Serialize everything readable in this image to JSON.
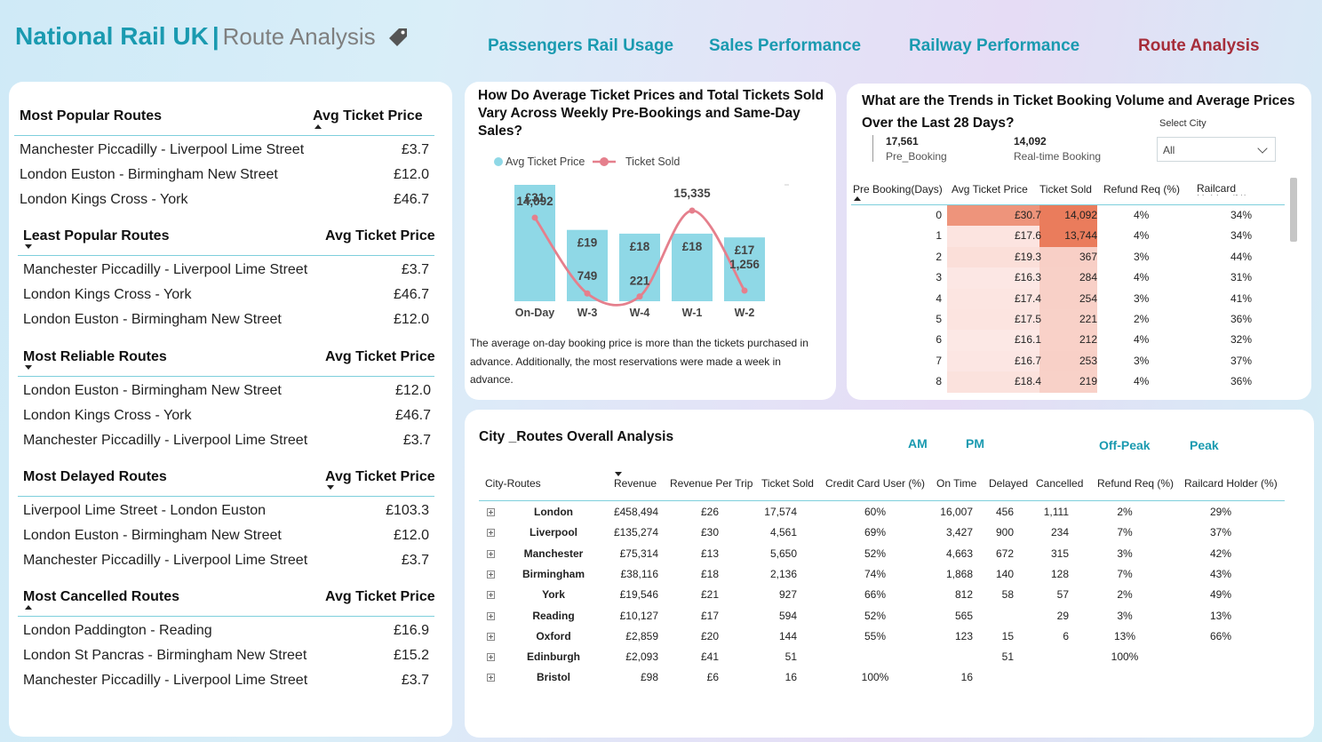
{
  "header": {
    "brand": "National Rail UK",
    "separator": "|",
    "subtitle": "Route Analysis",
    "icon": "tag-icon"
  },
  "nav": [
    {
      "label": "Passengers Rail Usage",
      "active": false
    },
    {
      "label": "Sales Performance",
      "active": false
    },
    {
      "label": "Railway Performance",
      "active": false
    },
    {
      "label": "Route Analysis",
      "active": true
    }
  ],
  "route_sections": [
    {
      "title": "Most Popular Routes",
      "price_header": "Avg Ticket Price",
      "sort": "up",
      "rows": [
        {
          "route": "Manchester Piccadilly - Liverpool Lime Street",
          "price": "£3.7"
        },
        {
          "route": "London Euston - Birmingham New Street",
          "price": "£12.0"
        },
        {
          "route": "London Kings Cross - York",
          "price": "£46.7"
        }
      ]
    },
    {
      "title": "Least Popular Routes",
      "price_header": "Avg Ticket Price",
      "sort": "down",
      "rows": [
        {
          "route": "Manchester Piccadilly - Liverpool Lime Street",
          "price": "£3.7"
        },
        {
          "route": "London Kings Cross - York",
          "price": "£46.7"
        },
        {
          "route": "London Euston - Birmingham New Street",
          "price": "£12.0"
        }
      ]
    },
    {
      "title": "Most Reliable Routes",
      "price_header": "Avg Ticket Price",
      "sort": "down",
      "rows": [
        {
          "route": "London Euston - Birmingham New Street",
          "price": "£12.0"
        },
        {
          "route": "London Kings Cross - York",
          "price": "£46.7"
        },
        {
          "route": "Manchester Piccadilly - Liverpool Lime Street",
          "price": "£3.7"
        }
      ]
    },
    {
      "title": "Most Delayed Routes",
      "price_header": "Avg Ticket Price",
      "sort": "down",
      "rows": [
        {
          "route": "Liverpool Lime Street - London Euston",
          "price": "£103.3"
        },
        {
          "route": "London Euston - Birmingham New Street",
          "price": "£12.0"
        },
        {
          "route": "Manchester Piccadilly - Liverpool Lime Street",
          "price": "£3.7"
        }
      ]
    },
    {
      "title": "Most Cancelled Routes",
      "price_header": "Avg Ticket Price",
      "sort": "up",
      "rows": [
        {
          "route": "London Paddington - Reading",
          "price": "£16.9"
        },
        {
          "route": "London St Pancras - Birmingham New Street",
          "price": "£15.2"
        },
        {
          "route": "Manchester Piccadilly - Liverpool Lime Street",
          "price": "£3.7"
        }
      ]
    }
  ],
  "chart_data": {
    "type": "bar",
    "title": "How Do Average Ticket Prices and Total Tickets Sold Vary Across Weekly Pre-Bookings and Same-Day Sales?",
    "categories": [
      "On-Day",
      "W-3",
      "W-4",
      "W-1",
      "W-2"
    ],
    "series": [
      {
        "name": "Avg Ticket Price",
        "kind": "bar",
        "values": [
          31,
          19,
          18,
          18,
          17
        ],
        "labels": [
          "£31",
          "£19",
          "£18",
          "£18",
          "£17"
        ],
        "color": "#8fd8e6"
      },
      {
        "name": "Ticket Sold",
        "kind": "line",
        "values": [
          14092,
          749,
          221,
          15335,
          1256
        ],
        "labels": [
          "14,092",
          "749",
          "221",
          "15,335",
          "1,256"
        ],
        "color": "#e57f8c"
      }
    ],
    "legend": "top-left",
    "grid": false
  },
  "chart_note": "The average on-day booking price is more than the tickets purchased in advance. Additionally, the most reservations were made a week in advance.",
  "trend": {
    "title": "What are the Trends in Ticket Booking Volume and Average Prices Over the Last 28 Days?",
    "kpis": [
      {
        "value": "17,561",
        "label": "Pre_Booking"
      },
      {
        "value": "14,092",
        "label": "Real-time Booking"
      }
    ],
    "select": {
      "label": "Select City",
      "value": "All"
    },
    "headers": [
      "Pre Booking(Days)",
      "Avg Ticket Price",
      "Ticket Sold",
      "Refund Req (%)",
      "Railcard Holder (%)"
    ],
    "rows": [
      {
        "day": "0",
        "price": "£30.7",
        "sold": "14,092",
        "refund": "4%",
        "railcard": "34%",
        "price_val": 30.7,
        "sold_val": 14092
      },
      {
        "day": "1",
        "price": "£17.6",
        "sold": "13,744",
        "refund": "4%",
        "railcard": "34%",
        "price_val": 17.6,
        "sold_val": 13744
      },
      {
        "day": "2",
        "price": "£19.3",
        "sold": "367",
        "refund": "3%",
        "railcard": "44%",
        "price_val": 19.3,
        "sold_val": 367
      },
      {
        "day": "3",
        "price": "£16.3",
        "sold": "284",
        "refund": "4%",
        "railcard": "31%",
        "price_val": 16.3,
        "sold_val": 284
      },
      {
        "day": "4",
        "price": "£17.4",
        "sold": "254",
        "refund": "3%",
        "railcard": "41%",
        "price_val": 17.4,
        "sold_val": 254
      },
      {
        "day": "5",
        "price": "£17.5",
        "sold": "221",
        "refund": "2%",
        "railcard": "36%",
        "price_val": 17.5,
        "sold_val": 221
      },
      {
        "day": "6",
        "price": "£16.1",
        "sold": "212",
        "refund": "4%",
        "railcard": "32%",
        "price_val": 16.1,
        "sold_val": 212
      },
      {
        "day": "7",
        "price": "£16.7",
        "sold": "253",
        "refund": "3%",
        "railcard": "37%",
        "price_val": 16.7,
        "sold_val": 253
      },
      {
        "day": "8",
        "price": "£18.4",
        "sold": "219",
        "refund": "4%",
        "railcard": "36%",
        "price_val": 18.4,
        "sold_val": 219
      }
    ]
  },
  "city": {
    "title": "City _Routes Overall Analysis",
    "slicers": [
      "AM",
      "PM",
      "Off-Peak",
      "Peak"
    ],
    "headers": [
      "City-Routes",
      "Revenue",
      "Revenue Per Trip",
      "Ticket Sold",
      "Credit Card User (%)",
      "On Time",
      "Delayed",
      "Cancelled",
      "Refund Req (%)",
      "Railcard Holder (%)"
    ],
    "rows": [
      [
        "London",
        "£458,494",
        "£26",
        "17,574",
        "60%",
        "16,007",
        "456",
        "1,111",
        "2%",
        "29%"
      ],
      [
        "Liverpool",
        "£135,274",
        "£30",
        "4,561",
        "69%",
        "3,427",
        "900",
        "234",
        "7%",
        "37%"
      ],
      [
        "Manchester",
        "£75,314",
        "£13",
        "5,650",
        "52%",
        "4,663",
        "672",
        "315",
        "3%",
        "42%"
      ],
      [
        "Birmingham",
        "£38,116",
        "£18",
        "2,136",
        "74%",
        "1,868",
        "140",
        "128",
        "7%",
        "43%"
      ],
      [
        "York",
        "£19,546",
        "£21",
        "927",
        "66%",
        "812",
        "58",
        "57",
        "2%",
        "49%"
      ],
      [
        "Reading",
        "£10,127",
        "£17",
        "594",
        "52%",
        "565",
        "",
        "29",
        "3%",
        "13%"
      ],
      [
        "Oxford",
        "£2,859",
        "£20",
        "144",
        "55%",
        "123",
        "15",
        "6",
        "13%",
        "66%"
      ],
      [
        "Edinburgh",
        "£2,093",
        "£41",
        "51",
        "",
        "",
        "51",
        "",
        "100%",
        ""
      ],
      [
        "Bristol",
        "£98",
        "£6",
        "16",
        "100%",
        "16",
        "",
        "",
        "",
        ""
      ]
    ]
  }
}
